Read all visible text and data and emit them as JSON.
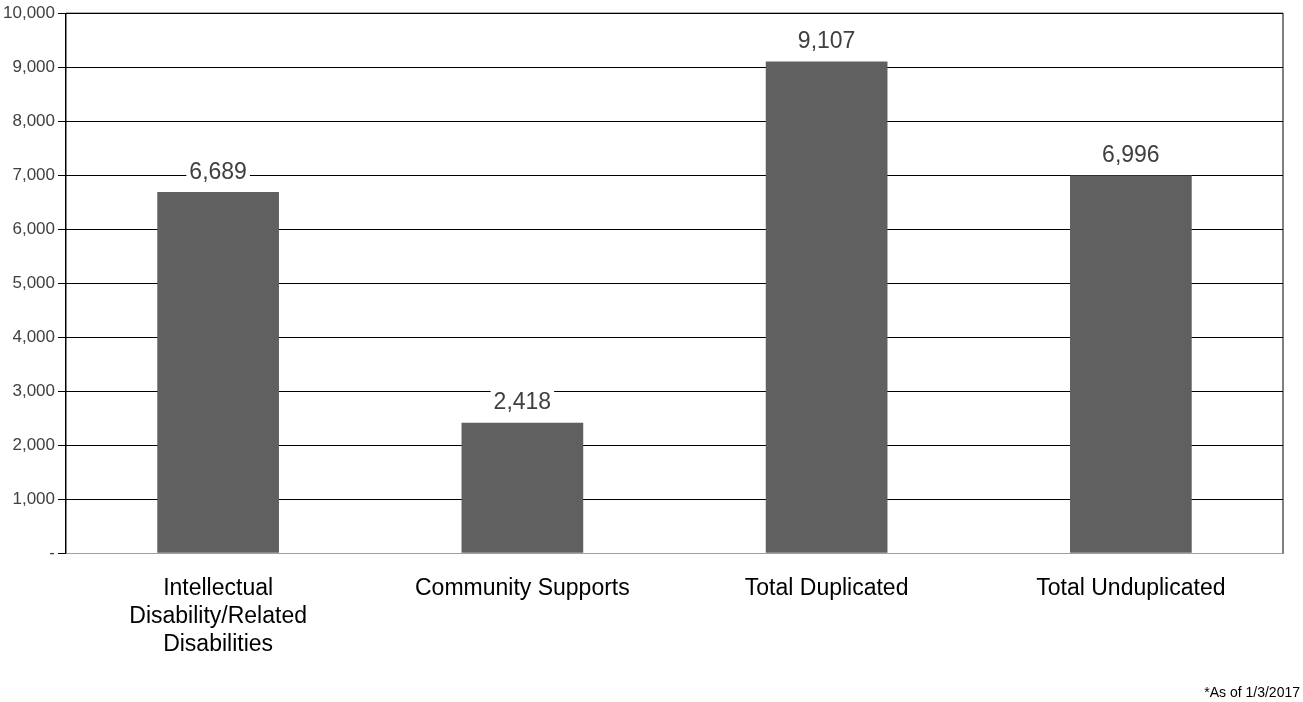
{
  "chart_data": {
    "type": "bar",
    "categories": [
      "Intellectual Disability/Related Disabilities",
      "Community Supports",
      "Total Duplicated",
      "Total Unduplicated"
    ],
    "values": [
      6689,
      2418,
      9107,
      6996
    ],
    "color": "#606060",
    "ylim": [
      0,
      10000
    ],
    "yticks": [
      {
        "value": 0,
        "label": "-"
      },
      {
        "value": 1000,
        "label": "1,000"
      },
      {
        "value": 2000,
        "label": "2,000"
      },
      {
        "value": 3000,
        "label": "3,000"
      },
      {
        "value": 4000,
        "label": "4,000"
      },
      {
        "value": 5000,
        "label": "5,000"
      },
      {
        "value": 6000,
        "label": "6,000"
      },
      {
        "value": 7000,
        "label": "7,000"
      },
      {
        "value": 8000,
        "label": "8,000"
      },
      {
        "value": 9000,
        "label": "9,000"
      },
      {
        "value": 10000,
        "label": "10,000"
      }
    ],
    "grid": "y",
    "value_labels": [
      "6,689",
      "2,418",
      "9,107",
      "6,996"
    ],
    "annotations": [
      "*As of 1/3/2017"
    ]
  }
}
